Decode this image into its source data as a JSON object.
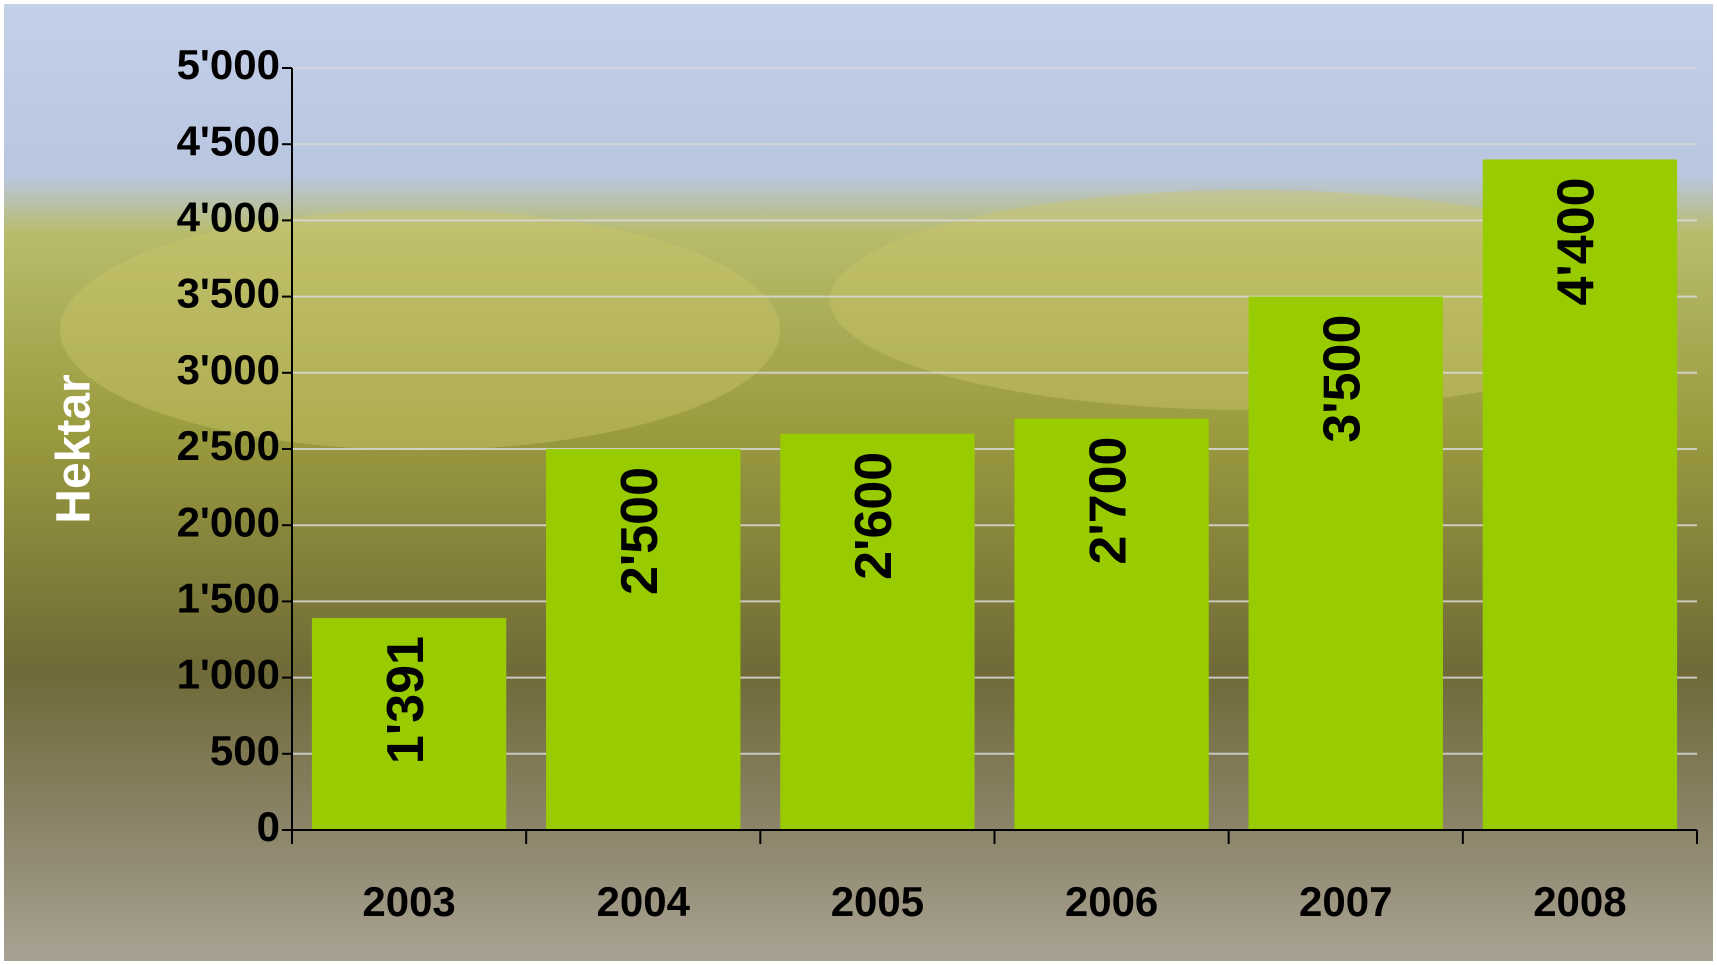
{
  "chart_data": {
    "type": "bar",
    "y_label": "Hektar",
    "categories": [
      "2003",
      "2004",
      "2005",
      "2006",
      "2007",
      "2008"
    ],
    "values": [
      1391,
      2500,
      2600,
      2700,
      3500,
      4400
    ],
    "value_labels": [
      "1'391",
      "2'500",
      "2'600",
      "2'700",
      "3'500",
      "4'400"
    ],
    "color": "#99cc00",
    "ylim": [
      0,
      5000
    ],
    "yticks": [
      0,
      500,
      {
        "value": 1000,
        "label": "1'000"
      },
      {
        "value": 1500,
        "label": "1'500"
      },
      {
        "value": 2000,
        "label": "2'000"
      },
      {
        "value": 2500,
        "label": "2'500"
      },
      {
        "value": 3000,
        "label": "3'000"
      },
      {
        "value": 3500,
        "label": "3'500"
      },
      {
        "value": 4000,
        "label": "4'000"
      },
      {
        "value": 4500,
        "label": "4'500"
      },
      {
        "value": 5000,
        "label": "5'000"
      }
    ],
    "grid": true
  }
}
